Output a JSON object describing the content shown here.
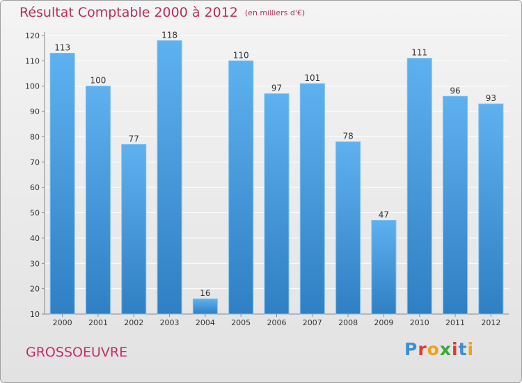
{
  "chart_data": {
    "type": "bar",
    "title": "Résultat Comptable 2000 à 2012",
    "subtitle": "(en milliers d'€)",
    "categories": [
      "2000",
      "2001",
      "2002",
      "2003",
      "2004",
      "2005",
      "2006",
      "2007",
      "2008",
      "2009",
      "2010",
      "2011",
      "2012"
    ],
    "values": [
      113,
      100,
      77,
      118,
      16,
      110,
      97,
      101,
      78,
      47,
      111,
      96,
      93
    ],
    "ylim": [
      10,
      120
    ],
    "yticks": [
      10,
      20,
      30,
      40,
      50,
      60,
      70,
      80,
      90,
      100,
      110,
      120
    ],
    "grid": true,
    "bar_color": "#4a9ee0"
  },
  "footer": {
    "commune": "GROSSOEUVRE",
    "logo": "Proxiti",
    "logo_colors": [
      "#3a8fd8",
      "#e23a2e",
      "#f0a11a",
      "#3aa83a",
      "#e23a2e",
      "#3a8fd8",
      "#f0a11a"
    ]
  }
}
